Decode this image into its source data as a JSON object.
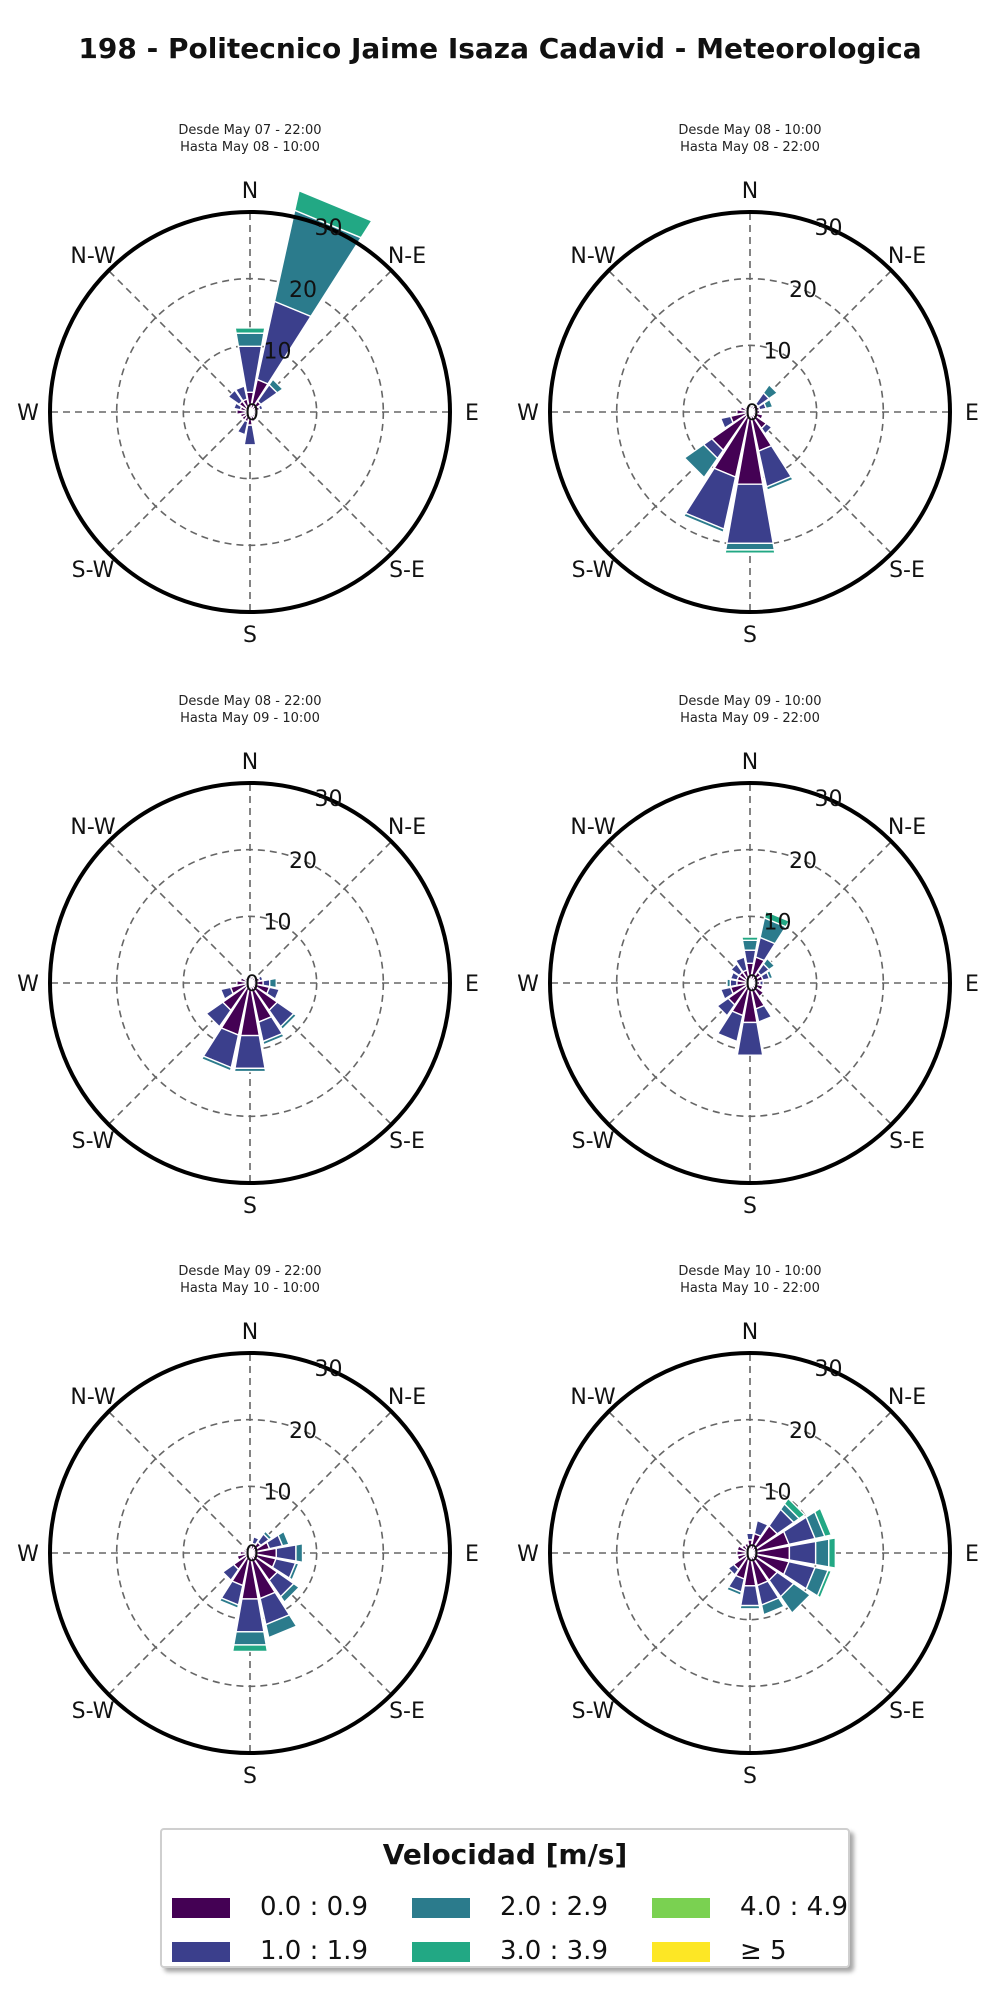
{
  "title": "198 - Politecnico Jaime Isaza Cadavid - Meteorologica",
  "legend": {
    "title": "Velocidad [m/s]",
    "bins": [
      {
        "label": "0.0 : 0.9",
        "color": "#440154"
      },
      {
        "label": "1.0 : 1.9",
        "color": "#3b3f8c"
      },
      {
        "label": "2.0 : 2.9",
        "color": "#2b7b8c"
      },
      {
        "label": "3.0 : 3.9",
        "color": "#22a884"
      },
      {
        "label": "4.0 : 4.9",
        "color": "#7ad151"
      },
      {
        "label": "≥ 5",
        "color": "#fde725"
      }
    ]
  },
  "direction_labels": [
    "N",
    "N-E",
    "E",
    "S-E",
    "S",
    "S-W",
    "W",
    "N-W"
  ],
  "chart_data": [
    {
      "type": "windrose",
      "subtitle_line1": "Desde May 07 - 22:00",
      "subtitle_line2": "Hasta May 08 - 10:00",
      "rmax": 30,
      "rticks": [
        0,
        10,
        20,
        30
      ],
      "sectors": [
        {
          "dir": 0,
          "values": [
            3,
            7,
            2,
            0.8
          ]
        },
        {
          "dir": 22.5,
          "values": [
            5,
            12,
            14,
            3
          ]
        },
        {
          "dir": 45,
          "values": [
            2,
            3,
            1
          ]
        },
        {
          "dir": 67.5,
          "values": [
            1.5,
            0.5
          ]
        },
        {
          "dir": 90,
          "values": [
            1
          ]
        },
        {
          "dir": 112.5,
          "values": [
            1
          ]
        },
        {
          "dir": 135,
          "values": [
            1
          ]
        },
        {
          "dir": 157.5,
          "values": [
            1.5
          ]
        },
        {
          "dir": 180,
          "values": [
            2,
            3
          ]
        },
        {
          "dir": 202.5,
          "values": [
            1.5,
            2
          ]
        },
        {
          "dir": 225,
          "values": [
            1.5
          ]
        },
        {
          "dir": 247.5,
          "values": [
            1.5
          ]
        },
        {
          "dir": 270,
          "values": [
            2
          ]
        },
        {
          "dir": 292.5,
          "values": [
            1.5,
            1
          ]
        },
        {
          "dir": 315,
          "values": [
            2,
            2
          ]
        },
        {
          "dir": 337.5,
          "values": [
            2,
            2
          ]
        }
      ]
    },
    {
      "type": "windrose",
      "subtitle_line1": "Desde May 08 - 10:00",
      "subtitle_line2": "Hasta May 08 - 22:00",
      "rmax": 30,
      "rticks": [
        0,
        10,
        20,
        30
      ],
      "sectors": [
        {
          "dir": 0,
          "values": [
            1
          ]
        },
        {
          "dir": 22.5,
          "values": [
            1
          ]
        },
        {
          "dir": 45,
          "values": [
            1.5,
            2,
            1.5
          ]
        },
        {
          "dir": 67.5,
          "values": [
            1.5,
            1,
            1
          ]
        },
        {
          "dir": 90,
          "values": [
            1.5
          ]
        },
        {
          "dir": 112.5,
          "values": [
            2
          ]
        },
        {
          "dir": 135,
          "values": [
            3,
            1
          ]
        },
        {
          "dir": 157.5,
          "values": [
            6,
            5.5,
            0.5
          ]
        },
        {
          "dir": 180,
          "values": [
            11,
            9,
            1,
            0.5
          ]
        },
        {
          "dir": 202.5,
          "values": [
            10,
            8,
            0.5
          ]
        },
        {
          "dir": 225,
          "values": [
            7,
            1.5,
            3.5
          ]
        },
        {
          "dir": 247.5,
          "values": [
            3,
            1.5
          ]
        },
        {
          "dir": 270,
          "values": [
            2
          ]
        },
        {
          "dir": 292.5,
          "values": [
            1.5
          ]
        },
        {
          "dir": 315,
          "values": [
            1
          ]
        },
        {
          "dir": 337.5,
          "values": [
            1
          ]
        }
      ]
    },
    {
      "type": "windrose",
      "subtitle_line1": "Desde May 08 - 22:00",
      "subtitle_line2": "Hasta May 09 - 10:00",
      "rmax": 30,
      "rticks": [
        0,
        10,
        20,
        30
      ],
      "sectors": [
        {
          "dir": 0,
          "values": [
            1
          ]
        },
        {
          "dir": 22.5,
          "values": [
            1
          ]
        },
        {
          "dir": 45,
          "values": [
            1
          ]
        },
        {
          "dir": 67.5,
          "values": [
            1.5,
            0.5
          ]
        },
        {
          "dir": 90,
          "values": [
            2,
            1,
            1
          ]
        },
        {
          "dir": 112.5,
          "values": [
            3,
            1.5
          ]
        },
        {
          "dir": 135,
          "values": [
            5,
            3,
            0.5
          ]
        },
        {
          "dir": 157.5,
          "values": [
            6,
            3,
            0.5
          ]
        },
        {
          "dir": 180,
          "values": [
            8,
            5,
            0.5
          ]
        },
        {
          "dir": 202.5,
          "values": [
            8,
            5,
            0.5
          ]
        },
        {
          "dir": 225,
          "values": [
            5,
            3
          ]
        },
        {
          "dir": 247.5,
          "values": [
            3,
            1.5
          ]
        },
        {
          "dir": 270,
          "values": [
            2
          ]
        },
        {
          "dir": 292.5,
          "values": [
            1.5
          ]
        },
        {
          "dir": 315,
          "values": [
            1
          ]
        },
        {
          "dir": 337.5,
          "values": [
            1
          ]
        }
      ]
    },
    {
      "type": "windrose",
      "subtitle_line1": "Desde May 09 - 10:00",
      "subtitle_line2": "Hasta May 09 - 22:00",
      "rmax": 30,
      "rticks": [
        0,
        10,
        20,
        30
      ],
      "sectors": [
        {
          "dir": 0,
          "values": [
            3,
            2,
            1.5,
            0.5
          ]
        },
        {
          "dir": 22.5,
          "values": [
            4,
            3,
            3,
            1
          ]
        },
        {
          "dir": 45,
          "values": [
            2,
            1.5,
            1
          ]
        },
        {
          "dir": 67.5,
          "values": [
            2,
            1,
            0.5
          ]
        },
        {
          "dir": 90,
          "values": [
            1.5,
            0.5
          ]
        },
        {
          "dir": 112.5,
          "values": [
            2
          ]
        },
        {
          "dir": 135,
          "values": [
            2.5
          ]
        },
        {
          "dir": 157.5,
          "values": [
            4,
            2
          ]
        },
        {
          "dir": 180,
          "values": [
            6,
            5
          ]
        },
        {
          "dir": 202.5,
          "values": [
            5,
            4
          ]
        },
        {
          "dir": 225,
          "values": [
            4,
            2
          ]
        },
        {
          "dir": 247.5,
          "values": [
            3,
            1.5
          ]
        },
        {
          "dir": 270,
          "values": [
            2,
            1,
            0.5
          ]
        },
        {
          "dir": 292.5,
          "values": [
            2,
            1
          ]
        },
        {
          "dir": 315,
          "values": [
            2,
            1.5
          ]
        },
        {
          "dir": 337.5,
          "values": [
            2,
            2
          ]
        }
      ]
    },
    {
      "type": "windrose",
      "subtitle_line1": "Desde May 09 - 22:00",
      "subtitle_line2": "Hasta May 10 - 10:00",
      "rmax": 30,
      "rticks": [
        0,
        10,
        20,
        30
      ],
      "sectors": [
        {
          "dir": 0,
          "values": [
            1
          ]
        },
        {
          "dir": 22.5,
          "values": [
            1.5,
            1
          ]
        },
        {
          "dir": 45,
          "values": [
            2,
            1.5,
            0.5
          ]
        },
        {
          "dir": 67.5,
          "values": [
            3,
            2,
            1
          ]
        },
        {
          "dir": 90,
          "values": [
            4,
            3,
            1
          ]
        },
        {
          "dir": 112.5,
          "values": [
            4,
            3,
            0.5
          ]
        },
        {
          "dir": 135,
          "values": [
            5,
            3,
            1
          ]
        },
        {
          "dir": 157.5,
          "values": [
            7,
            4,
            2
          ]
        },
        {
          "dir": 180,
          "values": [
            7,
            5,
            2,
            1
          ]
        },
        {
          "dir": 202.5,
          "values": [
            5,
            3,
            0.5
          ]
        },
        {
          "dir": 225,
          "values": [
            3,
            2
          ]
        },
        {
          "dir": 247.5,
          "values": [
            2
          ]
        },
        {
          "dir": 270,
          "values": [
            1.5
          ]
        },
        {
          "dir": 292.5,
          "values": [
            1
          ]
        },
        {
          "dir": 315,
          "values": [
            1
          ]
        },
        {
          "dir": 337.5,
          "values": [
            1
          ]
        }
      ]
    },
    {
      "type": "windrose",
      "subtitle_line1": "Desde May 10 - 10:00",
      "subtitle_line2": "Hasta May 10 - 22:00",
      "rmax": 30,
      "rticks": [
        0,
        10,
        20,
        30
      ],
      "sectors": [
        {
          "dir": 0,
          "values": [
            2,
            1
          ]
        },
        {
          "dir": 22.5,
          "values": [
            3,
            2
          ]
        },
        {
          "dir": 45,
          "values": [
            5,
            3,
            1,
            1
          ]
        },
        {
          "dir": 67.5,
          "values": [
            6,
            4,
            1.5,
            1
          ]
        },
        {
          "dir": 90,
          "values": [
            6,
            4,
            2,
            1
          ]
        },
        {
          "dir": 112.5,
          "values": [
            6,
            4,
            2,
            0.5
          ]
        },
        {
          "dir": 135,
          "values": [
            5,
            3,
            3
          ]
        },
        {
          "dir": 157.5,
          "values": [
            5,
            3,
            1.5
          ]
        },
        {
          "dir": 180,
          "values": [
            5,
            3,
            0.5
          ]
        },
        {
          "dir": 202.5,
          "values": [
            4,
            2,
            0.5
          ]
        },
        {
          "dir": 225,
          "values": [
            3,
            1
          ]
        },
        {
          "dir": 247.5,
          "values": [
            2
          ]
        },
        {
          "dir": 270,
          "values": [
            2
          ]
        },
        {
          "dir": 292.5,
          "values": [
            2
          ]
        },
        {
          "dir": 315,
          "values": [
            1.5
          ]
        },
        {
          "dir": 337.5,
          "values": [
            1.5
          ]
        }
      ]
    }
  ]
}
